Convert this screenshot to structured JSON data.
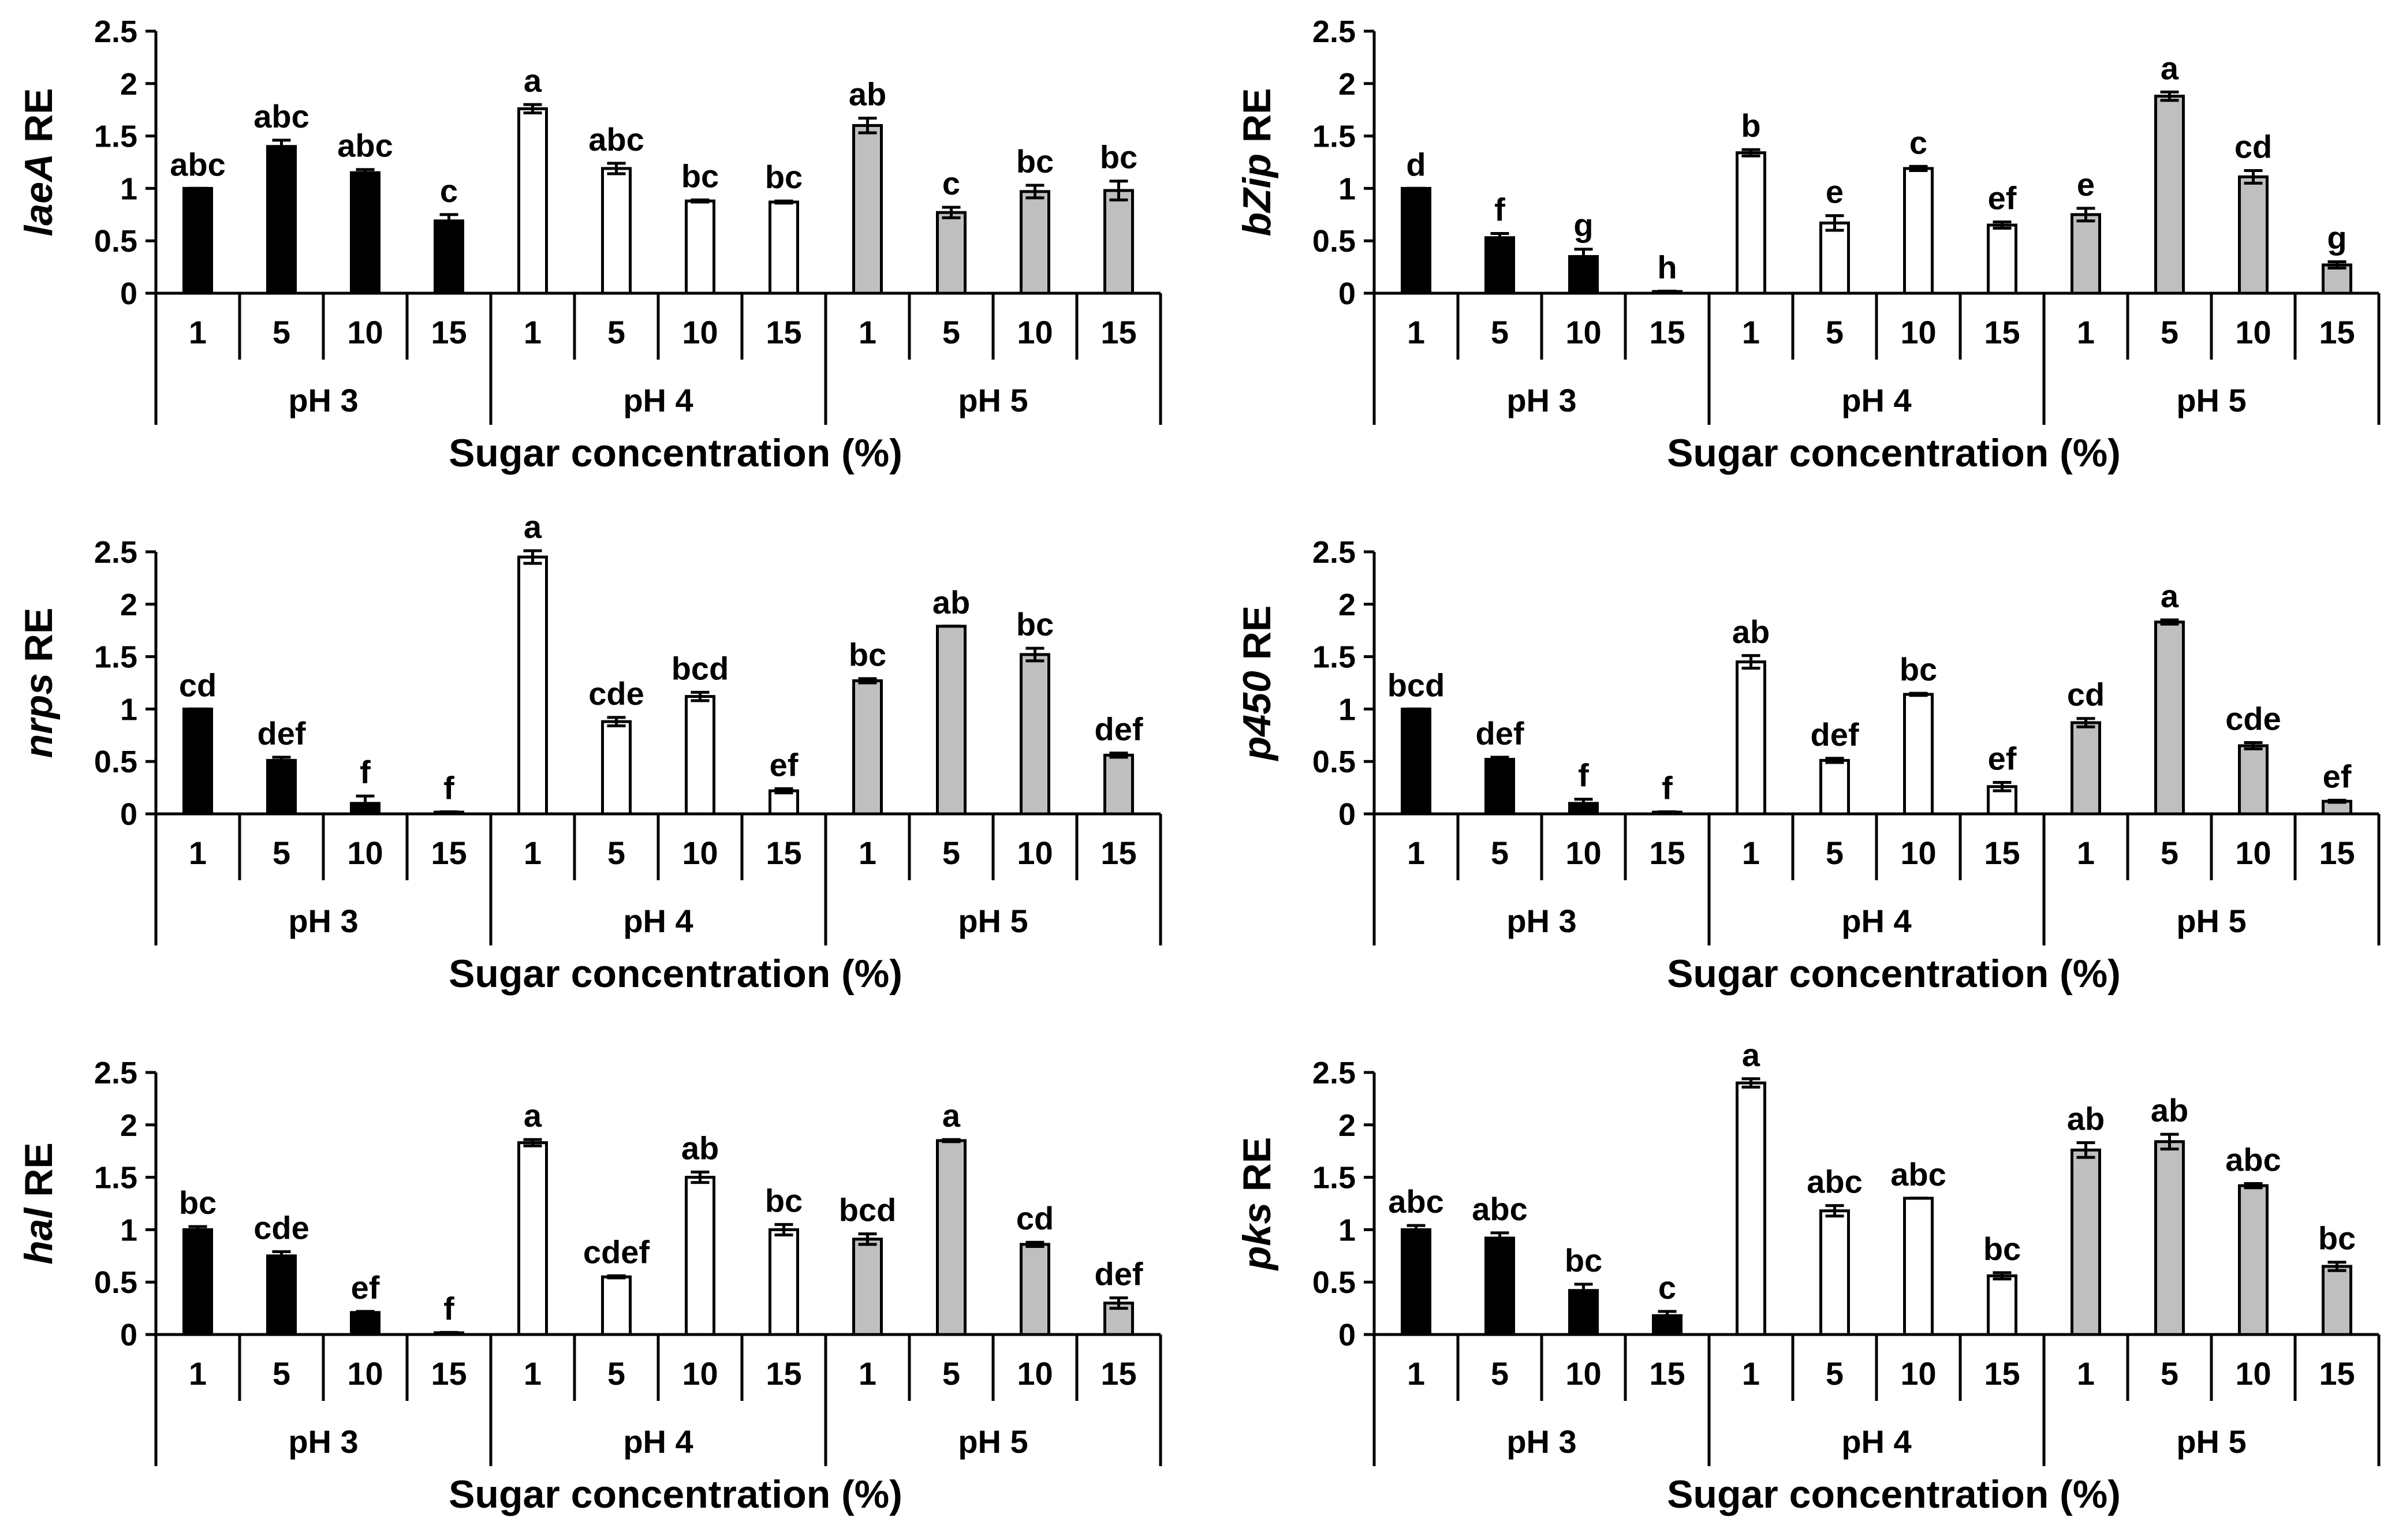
{
  "chart_data": [
    {
      "type": "bar",
      "ylabel": {
        "gene": "laeA",
        "suffix": " RE"
      },
      "xlabel": "Sugar concentration (%)",
      "ylim": [
        0,
        2.5
      ],
      "yticks": [
        "0",
        "0.5",
        "1",
        "1.5",
        "2",
        "2.5"
      ],
      "groups": [
        "pH 3",
        "pH 4",
        "pH 5"
      ],
      "categories": [
        "1",
        "5",
        "10",
        "15"
      ],
      "series": [
        {
          "name": "pH 3",
          "values": [
            1.0,
            1.4,
            1.15,
            0.69
          ],
          "errors": [
            0.0,
            0.06,
            0.03,
            0.06
          ],
          "letters": [
            "abc",
            "abc",
            "abc",
            "c"
          ]
        },
        {
          "name": "pH 4",
          "values": [
            1.76,
            1.19,
            0.88,
            0.87
          ],
          "errors": [
            0.04,
            0.05,
            0.01,
            0.01
          ],
          "letters": [
            "a",
            "abc",
            "bc",
            "bc"
          ]
        },
        {
          "name": "pH 5",
          "values": [
            1.6,
            0.77,
            0.97,
            0.98
          ],
          "errors": [
            0.07,
            0.05,
            0.06,
            0.09
          ],
          "letters": [
            "ab",
            "c",
            "bc",
            "bc"
          ]
        }
      ]
    },
    {
      "type": "bar",
      "ylabel": {
        "gene": "bZip",
        "suffix": " RE"
      },
      "xlabel": "Sugar concentration (%)",
      "ylim": [
        0,
        2.5
      ],
      "yticks": [
        "0",
        "0.5",
        "1",
        "1.5",
        "2",
        "2.5"
      ],
      "groups": [
        "pH 3",
        "pH 4",
        "pH 5"
      ],
      "categories": [
        "1",
        "5",
        "10",
        "15"
      ],
      "series": [
        {
          "name": "pH 3",
          "values": [
            1.0,
            0.53,
            0.35,
            0.01
          ],
          "errors": [
            0.0,
            0.04,
            0.07,
            0.01
          ],
          "letters": [
            "d",
            "f",
            "g",
            "h"
          ]
        },
        {
          "name": "pH 4",
          "values": [
            1.34,
            0.67,
            1.19,
            0.65
          ],
          "errors": [
            0.03,
            0.07,
            0.02,
            0.03
          ],
          "letters": [
            "b",
            "e",
            "c",
            "ef"
          ]
        },
        {
          "name": "pH 5",
          "values": [
            0.75,
            1.88,
            1.11,
            0.27
          ],
          "errors": [
            0.06,
            0.04,
            0.06,
            0.03
          ],
          "letters": [
            "e",
            "a",
            "cd",
            "g"
          ]
        }
      ]
    },
    {
      "type": "bar",
      "ylabel": {
        "gene": "nrps",
        "suffix": " RE"
      },
      "xlabel": "Sugar concentration (%)",
      "ylim": [
        0,
        2.5
      ],
      "yticks": [
        "0",
        "0.5",
        "1",
        "1.5",
        "2",
        "2.5"
      ],
      "groups": [
        "pH 3",
        "pH 4",
        "pH 5"
      ],
      "categories": [
        "1",
        "5",
        "10",
        "15"
      ],
      "series": [
        {
          "name": "pH 3",
          "values": [
            1.0,
            0.51,
            0.1,
            0.01
          ],
          "errors": [
            0.0,
            0.03,
            0.07,
            0.01
          ],
          "letters": [
            "cd",
            "def",
            "f",
            "f"
          ]
        },
        {
          "name": "pH 4",
          "values": [
            2.45,
            0.88,
            1.12,
            0.22
          ],
          "errors": [
            0.06,
            0.04,
            0.04,
            0.02
          ],
          "letters": [
            "a",
            "cde",
            "bcd",
            "ef"
          ]
        },
        {
          "name": "pH 5",
          "values": [
            1.27,
            1.79,
            1.52,
            0.56
          ],
          "errors": [
            0.02,
            0.0,
            0.06,
            0.02
          ],
          "letters": [
            "bc",
            "ab",
            "bc",
            "def"
          ]
        }
      ]
    },
    {
      "type": "bar",
      "ylabel": {
        "gene": "p450",
        "suffix": " RE"
      },
      "xlabel": "Sugar concentration (%)",
      "ylim": [
        0,
        2.5
      ],
      "yticks": [
        "0",
        "0.5",
        "1",
        "1.5",
        "2",
        "2.5"
      ],
      "groups": [
        "pH 3",
        "pH 4",
        "pH 5"
      ],
      "categories": [
        "1",
        "5",
        "10",
        "15"
      ],
      "series": [
        {
          "name": "pH 3",
          "values": [
            1.0,
            0.52,
            0.1,
            0.01
          ],
          "errors": [
            0.0,
            0.02,
            0.04,
            0.01
          ],
          "letters": [
            "bcd",
            "def",
            "f",
            "f"
          ]
        },
        {
          "name": "pH 4",
          "values": [
            1.45,
            0.51,
            1.14,
            0.26
          ],
          "errors": [
            0.06,
            0.02,
            0.01,
            0.04
          ],
          "letters": [
            "ab",
            "def",
            "bc",
            "ef"
          ]
        },
        {
          "name": "pH 5",
          "values": [
            0.87,
            1.83,
            0.65,
            0.12
          ],
          "errors": [
            0.04,
            0.02,
            0.03,
            0.01
          ],
          "letters": [
            "cd",
            "a",
            "cde",
            "ef"
          ]
        }
      ]
    },
    {
      "type": "bar",
      "ylabel": {
        "gene": "hal",
        "suffix": " RE"
      },
      "xlabel": "Sugar concentration (%)",
      "ylim": [
        0,
        2.5
      ],
      "yticks": [
        "0",
        "0.5",
        "1",
        "1.5",
        "2",
        "2.5"
      ],
      "groups": [
        "pH 3",
        "pH 4",
        "pH 5"
      ],
      "categories": [
        "1",
        "5",
        "10",
        "15"
      ],
      "series": [
        {
          "name": "pH 3",
          "values": [
            1.0,
            0.75,
            0.21,
            0.01
          ],
          "errors": [
            0.03,
            0.04,
            0.01,
            0.01
          ],
          "letters": [
            "bc",
            "cde",
            "ef",
            "f"
          ]
        },
        {
          "name": "pH 4",
          "values": [
            1.83,
            0.55,
            1.5,
            1.0
          ],
          "errors": [
            0.03,
            0.01,
            0.05,
            0.05
          ],
          "letters": [
            "a",
            "cdef",
            "ab",
            "bc"
          ]
        },
        {
          "name": "pH 5",
          "values": [
            0.91,
            1.85,
            0.86,
            0.3
          ],
          "errors": [
            0.05,
            0.01,
            0.02,
            0.05
          ],
          "letters": [
            "bcd",
            "a",
            "cd",
            "def"
          ]
        }
      ]
    },
    {
      "type": "bar",
      "ylabel": {
        "gene": "pks",
        "suffix": " RE"
      },
      "xlabel": "Sugar concentration (%)",
      "ylim": [
        0,
        2.5
      ],
      "yticks": [
        "0",
        "0.5",
        "1",
        "1.5",
        "2",
        "2.5"
      ],
      "groups": [
        "pH 3",
        "pH 4",
        "pH 5"
      ],
      "categories": [
        "1",
        "5",
        "10",
        "15"
      ],
      "series": [
        {
          "name": "pH 3",
          "values": [
            1.0,
            0.92,
            0.42,
            0.18
          ],
          "errors": [
            0.04,
            0.05,
            0.06,
            0.04
          ],
          "letters": [
            "abc",
            "abc",
            "bc",
            "c"
          ]
        },
        {
          "name": "pH 4",
          "values": [
            2.4,
            1.18,
            1.3,
            0.56
          ],
          "errors": [
            0.04,
            0.05,
            0.0,
            0.03
          ],
          "letters": [
            "a",
            "abc",
            "abc",
            "bc"
          ]
        },
        {
          "name": "pH 5",
          "values": [
            1.76,
            1.84,
            1.42,
            0.65
          ],
          "errors": [
            0.07,
            0.07,
            0.02,
            0.04
          ],
          "letters": [
            "ab",
            "ab",
            "abc",
            "bc"
          ]
        }
      ]
    }
  ],
  "colors": {
    "pH 3": "#000000",
    "pH 4": "#ffffff",
    "pH 5": "#bfbfbf",
    "axis": "#000000"
  }
}
